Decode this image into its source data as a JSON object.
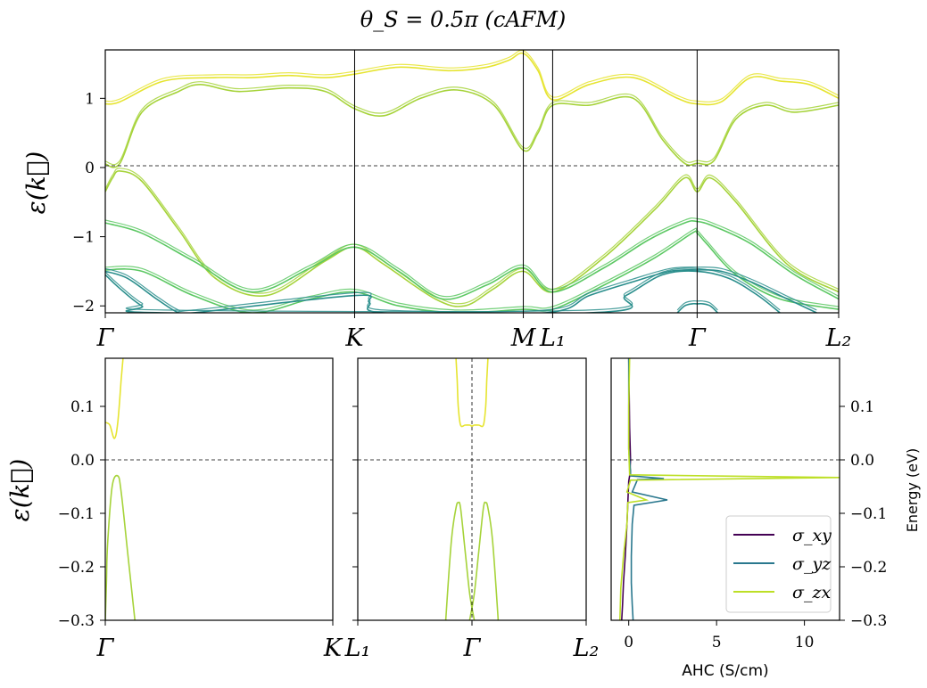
{
  "colors": {
    "frame": "#000000",
    "c_high": "#e6e430",
    "c_mid": "#a6d33a",
    "c_low": "#5cc863",
    "c_deep": "#2a8e8c",
    "sigma_xy": "#440154",
    "sigma_yz": "#2a788e",
    "sigma_zx": "#bddf26"
  },
  "chart_data": [
    {
      "type": "line",
      "id": "top",
      "title": "θ_S = 0.5π (cAFM)",
      "ylabel": "ε(k⃗)",
      "xlabel": "",
      "x_ticks": [
        "Γ",
        "K",
        "M",
        "L₁",
        "Γ",
        "L₂"
      ],
      "x_tick_positions": [
        0,
        0.34,
        0.57,
        0.61,
        0.807,
        1.0
      ],
      "ylim": [
        -2.1,
        1.7
      ],
      "y_ticks": [
        1,
        0,
        -1,
        -2
      ],
      "y_tick_labels": [
        "1",
        "0",
        "−1",
        "−2"
      ],
      "series": [
        {
          "name": "cb-upper",
          "color": "c_high",
          "x": [
            0,
            0.02,
            0.08,
            0.15,
            0.2,
            0.25,
            0.3,
            0.34,
            0.4,
            0.47,
            0.52,
            0.55,
            0.57,
            0.59,
            0.61,
            0.66,
            0.72,
            0.78,
            0.807,
            0.84,
            0.88,
            0.92,
            0.96,
            1.0
          ],
          "y": [
            0.92,
            0.95,
            1.25,
            1.3,
            1.3,
            1.33,
            1.3,
            1.35,
            1.45,
            1.4,
            1.45,
            1.55,
            1.65,
            1.4,
            0.98,
            1.2,
            1.3,
            1.0,
            0.92,
            0.95,
            1.3,
            1.25,
            1.2,
            1.0
          ]
        },
        {
          "name": "cb-lower",
          "color": "c_mid",
          "x": [
            0,
            0.02,
            0.05,
            0.1,
            0.13,
            0.18,
            0.25,
            0.3,
            0.34,
            0.38,
            0.43,
            0.48,
            0.53,
            0.57,
            0.59,
            0.61,
            0.66,
            0.72,
            0.76,
            0.79,
            0.807,
            0.83,
            0.86,
            0.9,
            0.94,
            1.0
          ],
          "y": [
            0.05,
            0.06,
            0.8,
            1.1,
            1.2,
            1.1,
            1.15,
            1.1,
            0.85,
            0.75,
            1.0,
            1.12,
            0.9,
            0.25,
            0.5,
            0.9,
            0.9,
            1.0,
            0.4,
            0.06,
            0.06,
            0.1,
            0.7,
            0.9,
            0.8,
            0.9
          ]
        },
        {
          "name": "vb-1",
          "color": "c_mid",
          "x": [
            0,
            0.01,
            0.02,
            0.05,
            0.1,
            0.15,
            0.22,
            0.3,
            0.34,
            0.38,
            0.45,
            0.49,
            0.53,
            0.57,
            0.61,
            0.68,
            0.75,
            0.79,
            0.807,
            0.825,
            0.86,
            0.93,
            1.0
          ],
          "y": [
            -0.35,
            -0.15,
            -0.05,
            -0.2,
            -0.9,
            -1.6,
            -1.85,
            -1.35,
            -1.15,
            -1.4,
            -1.9,
            -2.0,
            -1.75,
            -1.5,
            -1.8,
            -1.3,
            -0.6,
            -0.15,
            -0.35,
            -0.15,
            -0.5,
            -1.4,
            -1.8
          ]
        },
        {
          "name": "vb-2",
          "color": "c_low",
          "x": [
            0,
            0.05,
            0.12,
            0.2,
            0.28,
            0.34,
            0.4,
            0.46,
            0.52,
            0.57,
            0.61,
            0.68,
            0.74,
            0.79,
            0.807,
            0.83,
            0.88,
            0.94,
            1.0
          ],
          "y": [
            -0.8,
            -0.95,
            -1.35,
            -1.8,
            -1.45,
            -1.15,
            -1.5,
            -1.9,
            -1.7,
            -1.45,
            -1.8,
            -1.45,
            -1.05,
            -0.8,
            -0.78,
            -0.85,
            -1.1,
            -1.55,
            -1.9
          ]
        },
        {
          "name": "vb-3",
          "color": "c_low",
          "x": [
            0,
            0.05,
            0.12,
            0.2,
            0.28,
            0.34,
            0.4,
            0.48,
            0.57,
            0.61,
            0.68,
            0.75,
            0.8,
            0.807,
            0.82,
            0.86,
            0.92,
            1.0
          ],
          "y": [
            -1.48,
            -1.5,
            -1.85,
            -2.1,
            -1.9,
            -1.8,
            -2.0,
            -2.1,
            -2.05,
            -2.05,
            -1.7,
            -1.3,
            -0.95,
            -0.95,
            -1.1,
            -1.55,
            -1.9,
            -2.05
          ]
        },
        {
          "name": "vb-4",
          "color": "c_deep",
          "x": [
            0,
            0.03,
            0.07,
            0.1,
            0.12,
            0.34,
            0.36,
            0.38,
            0.6,
            0.66,
            0.72,
            0.77,
            0.807,
            0.84,
            0.88,
            0.93,
            0.97
          ],
          "y": [
            -1.5,
            -1.6,
            -1.9,
            -2.1,
            -2.1,
            -1.85,
            -1.95,
            -2.1,
            -2.1,
            -1.85,
            -1.65,
            -1.5,
            -1.48,
            -1.5,
            -1.65,
            -1.9,
            -2.1
          ]
        },
        {
          "name": "vb-5",
          "color": "c_deep",
          "x": [
            0,
            0.02,
            0.05,
            0.08,
            0.66,
            0.71,
            0.76,
            0.807,
            0.85,
            0.89,
            0.92
          ],
          "y": [
            -1.55,
            -1.75,
            -2.0,
            -2.1,
            -2.1,
            -1.85,
            -1.55,
            -1.5,
            -1.6,
            -1.85,
            -2.1
          ]
        },
        {
          "name": "vb-6",
          "color": "c_deep",
          "x": [
            0.78,
            0.79,
            0.8,
            0.807,
            0.815,
            0.825,
            0.835
          ],
          "y": [
            -2.1,
            -2.0,
            -1.97,
            -1.97,
            -1.97,
            -2.0,
            -2.1
          ]
        }
      ]
    },
    {
      "type": "line",
      "id": "bottom-left",
      "ylabel": "ε(k⃗)",
      "x_ticks": [
        "Γ",
        "K"
      ],
      "x_tick_positions": [
        0,
        1.0
      ],
      "ylim": [
        -0.3,
        0.19
      ],
      "y_ticks": [
        0.1,
        0.0,
        -0.1,
        -0.2,
        -0.3
      ],
      "y_tick_labels": [
        "0.1",
        "0.0",
        "−0.1",
        "−0.2",
        "−0.3"
      ],
      "series": [
        {
          "name": "cb",
          "color": "c_high",
          "x": [
            0,
            0.02,
            0.04,
            0.055,
            0.07,
            0.078
          ],
          "y": [
            0.07,
            0.065,
            0.04,
            0.07,
            0.15,
            0.19
          ]
        },
        {
          "name": "vb",
          "color": "c_mid",
          "x": [
            0,
            0.005,
            0.01,
            0.03,
            0.055,
            0.07,
            0.1,
            0.13
          ],
          "y": [
            -0.3,
            -0.23,
            -0.16,
            -0.05,
            -0.03,
            -0.06,
            -0.18,
            -0.3
          ]
        }
      ]
    },
    {
      "type": "line",
      "id": "bottom-mid",
      "x_ticks": [
        "L₁",
        "Γ",
        "L₂"
      ],
      "x_tick_positions": [
        0,
        0.5,
        1.0
      ],
      "ylim": [
        -0.3,
        0.19
      ],
      "series": [
        {
          "name": "cb",
          "color": "c_high",
          "x": [
            0.43,
            0.435,
            0.44,
            0.45,
            0.47,
            0.49,
            0.5,
            0.51,
            0.53,
            0.55,
            0.56,
            0.565,
            0.57
          ],
          "y": [
            0.19,
            0.15,
            0.1,
            0.065,
            0.065,
            0.065,
            0.063,
            0.065,
            0.065,
            0.065,
            0.1,
            0.15,
            0.19
          ]
        },
        {
          "name": "vb-left",
          "color": "c_mid",
          "x": [
            0.385,
            0.41,
            0.43,
            0.44,
            0.45,
            0.47,
            0.49,
            0.51
          ],
          "y": [
            -0.3,
            -0.15,
            -0.09,
            -0.08,
            -0.09,
            -0.17,
            -0.25,
            -0.3
          ]
        },
        {
          "name": "vb-right",
          "color": "c_mid",
          "x": [
            0.49,
            0.51,
            0.53,
            0.55,
            0.56,
            0.57,
            0.59,
            0.615
          ],
          "y": [
            -0.3,
            -0.25,
            -0.17,
            -0.09,
            -0.08,
            -0.09,
            -0.15,
            -0.3
          ]
        }
      ]
    },
    {
      "type": "line",
      "id": "bottom-right",
      "xlabel": "AHC (S/cm)",
      "ylabel": "Energy (eV)",
      "xlim": [
        -1.0,
        12.0
      ],
      "ylim": [
        -0.3,
        0.19
      ],
      "x_ticks": [
        0,
        5,
        10
      ],
      "y_ticks": [
        0.1,
        0.0,
        -0.1,
        -0.2,
        -0.3
      ],
      "y_tick_labels": [
        "0.1",
        "0.0",
        "−0.1",
        "−0.2",
        "−0.3"
      ],
      "legend": {
        "position": "lower-right",
        "entries": [
          "σ_xy",
          "σ_yz",
          "σ_zx"
        ]
      },
      "series": [
        {
          "name": "σ_xy",
          "color": "sigma_xy",
          "x": [
            0,
            0.05,
            0.1,
            0.05,
            0,
            -0.05,
            -0.1,
            -0.2,
            -0.3,
            -0.35,
            -0.4
          ],
          "y": [
            0.19,
            0.06,
            0.0,
            -0.03,
            -0.04,
            -0.08,
            -0.12,
            -0.18,
            -0.23,
            -0.27,
            -0.3
          ]
        },
        {
          "name": "σ_yz",
          "color": "sigma_yz",
          "x": [
            0,
            0,
            0.1,
            0.1,
            0.5,
            2.0,
            0.5,
            0.2,
            2.2,
            0.3,
            0.2,
            0.15,
            0.15,
            0.2,
            0.25
          ],
          "y": [
            0.19,
            0.02,
            -0.02,
            -0.03,
            -0.031,
            -0.035,
            -0.037,
            -0.06,
            -0.075,
            -0.085,
            -0.12,
            -0.18,
            -0.23,
            -0.27,
            -0.3
          ]
        },
        {
          "name": "σ_zx",
          "color": "sigma_zx",
          "x": [
            0.05,
            0.0,
            0.0,
            0.05,
            12.0,
            0.1,
            -0.1,
            1.0,
            -0.05,
            -0.1,
            -0.3,
            -0.45,
            -0.5
          ],
          "y": [
            0.19,
            0.1,
            0.02,
            -0.028,
            -0.033,
            -0.038,
            -0.06,
            -0.075,
            -0.08,
            -0.12,
            -0.18,
            -0.24,
            -0.3
          ]
        }
      ]
    }
  ]
}
